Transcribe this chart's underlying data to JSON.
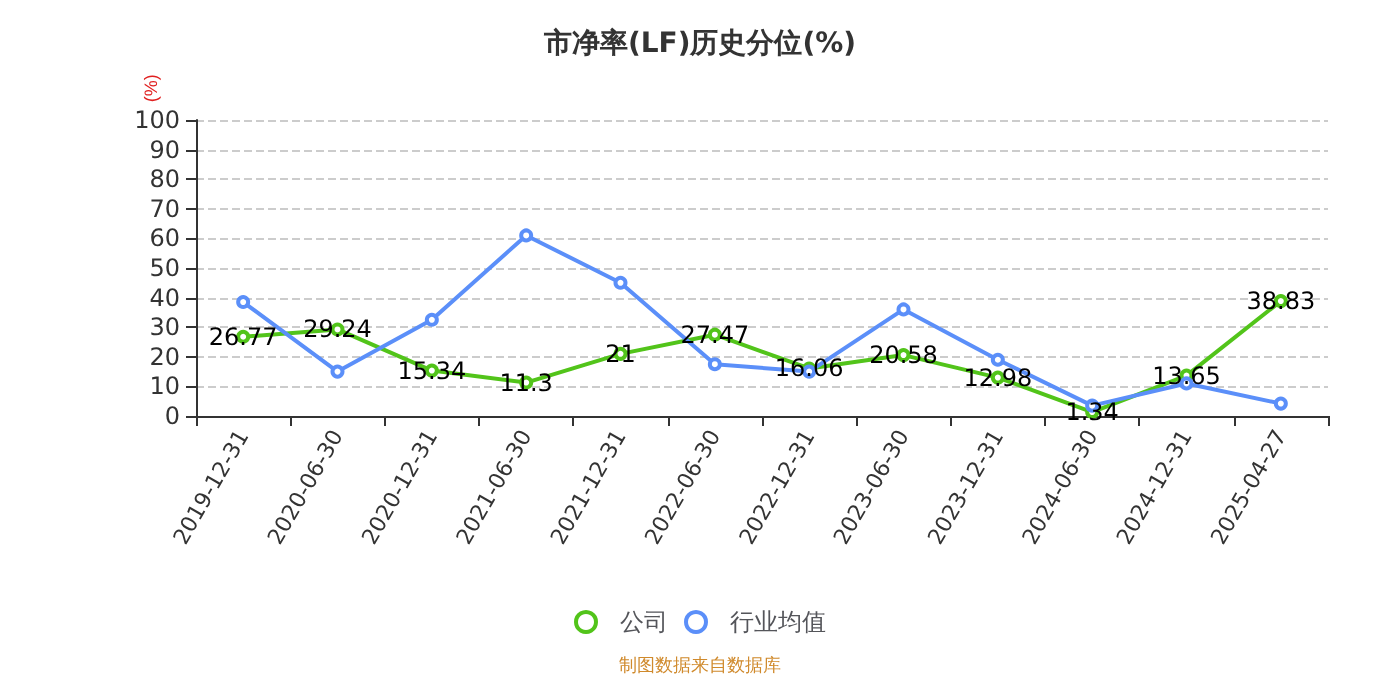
{
  "chart_data": {
    "type": "line",
    "title": "市净率(LF)历史分位(%)",
    "ylabel": "(%)",
    "categories": [
      "2019-12-31",
      "2020-06-30",
      "2020-12-31",
      "2021-06-30",
      "2021-12-31",
      "2022-06-30",
      "2022-12-31",
      "2023-06-30",
      "2023-12-31",
      "2024-06-30",
      "2024-12-31",
      "2025-04-27"
    ],
    "series": [
      {
        "name": "公司",
        "color": "#52c41a",
        "values": [
          26.77,
          29.24,
          15.34,
          11.3,
          21,
          27.47,
          16.06,
          20.58,
          12.98,
          1.34,
          13.65,
          38.83
        ],
        "value_labels": [
          "26.77",
          "29.24",
          "15.34",
          "11.3",
          "21",
          "27.47",
          "16.06",
          "20.58",
          "12.98",
          "1.34",
          "13.65",
          "38.83"
        ]
      },
      {
        "name": "行业均值",
        "color": "#5b8ff9",
        "values": [
          38.5,
          15,
          32.5,
          61,
          45,
          17.5,
          15,
          36,
          19,
          3.5,
          11,
          4.2
        ]
      }
    ],
    "ylim": [
      0,
      100
    ],
    "yticks": [
      0,
      10,
      20,
      30,
      40,
      50,
      60,
      70,
      80,
      90,
      100
    ],
    "grid": "y",
    "legend": "bottom",
    "marker": "circle",
    "line_style": "solid",
    "annotations": [
      "制图数据来自数据库"
    ]
  }
}
